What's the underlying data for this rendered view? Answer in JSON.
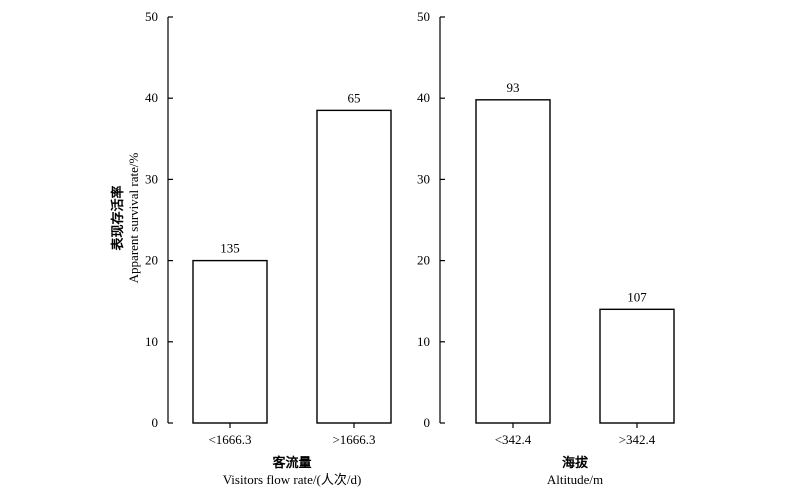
{
  "chart_data": [
    {
      "type": "bar",
      "categories": [
        "<1666.3",
        ">1666.3"
      ],
      "values": [
        20,
        38.5
      ],
      "data_labels": [
        "135",
        "65"
      ],
      "xlabel_cn": "客流量",
      "xlabel": "Visitors flow rate/(人次/d)",
      "ylim": [
        0,
        50
      ],
      "yticks": [
        0,
        10,
        20,
        30,
        40,
        50
      ],
      "grid": false
    },
    {
      "type": "bar",
      "categories": [
        "<342.4",
        ">342.4"
      ],
      "values": [
        39.8,
        14
      ],
      "data_labels": [
        "93",
        "107"
      ],
      "xlabel_cn": "海拔",
      "xlabel": "Altitude/m",
      "ylim": [
        0,
        50
      ],
      "yticks": [
        0,
        10,
        20,
        30,
        40,
        50
      ],
      "grid": false
    }
  ],
  "ylabel_cn": "表现存活率",
  "ylabel": "Apparent survival rate/%"
}
